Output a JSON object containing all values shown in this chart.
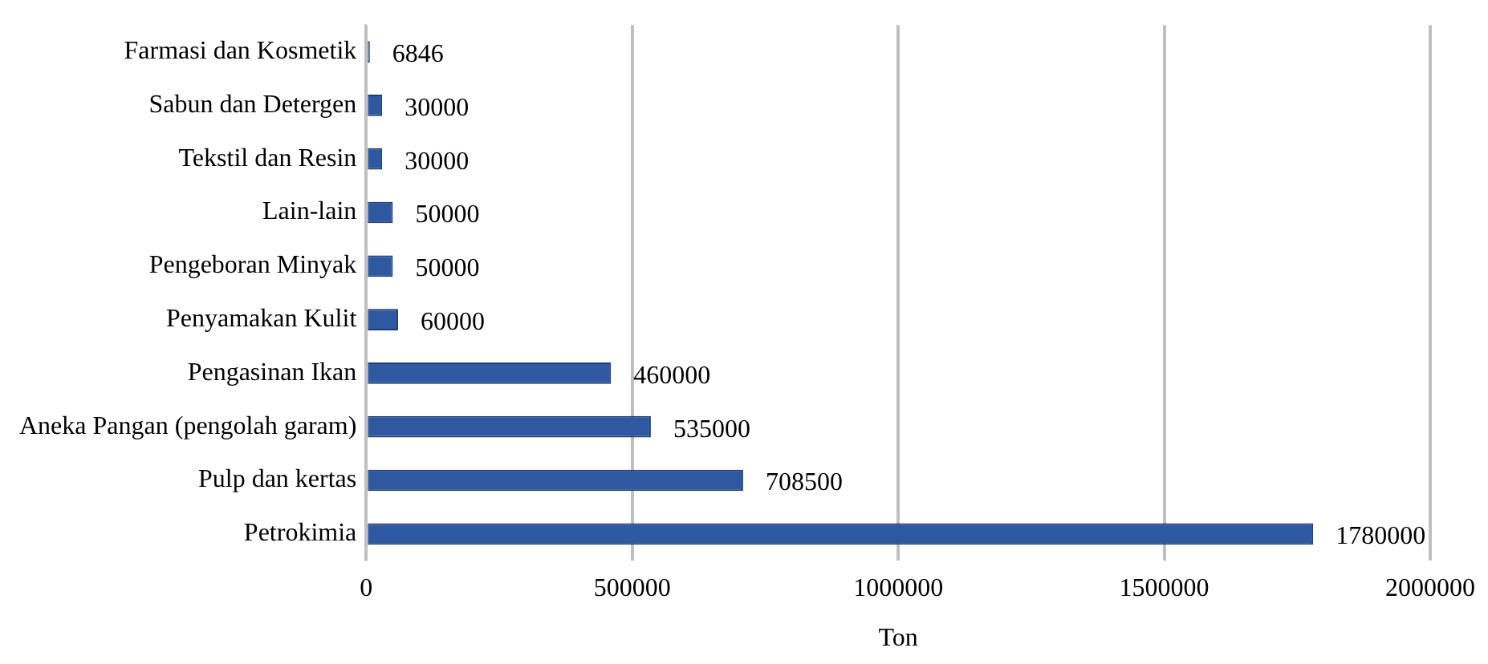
{
  "chart_data": {
    "type": "bar",
    "orientation": "horizontal",
    "xlabel": "Ton",
    "categories": [
      "Farmasi dan Kosmetik",
      "Sabun dan Detergen",
      "Tekstil dan Resin",
      "Lain-lain",
      "Pengeboran Minyak",
      "Penyamakan Kulit",
      "Pengasinan Ikan",
      "Aneka Pangan (pengolah garam)",
      "Pulp dan kertas",
      "Petrokimia"
    ],
    "values": [
      6846,
      30000,
      30000,
      50000,
      50000,
      60000,
      460000,
      535000,
      708500,
      1780000
    ],
    "color": "#2e58a0",
    "xlim": [
      0,
      2000000
    ],
    "xticks": [
      0,
      500000,
      1000000,
      1500000,
      2000000
    ],
    "grid": "x",
    "data_labels": true,
    "legend": false
  }
}
